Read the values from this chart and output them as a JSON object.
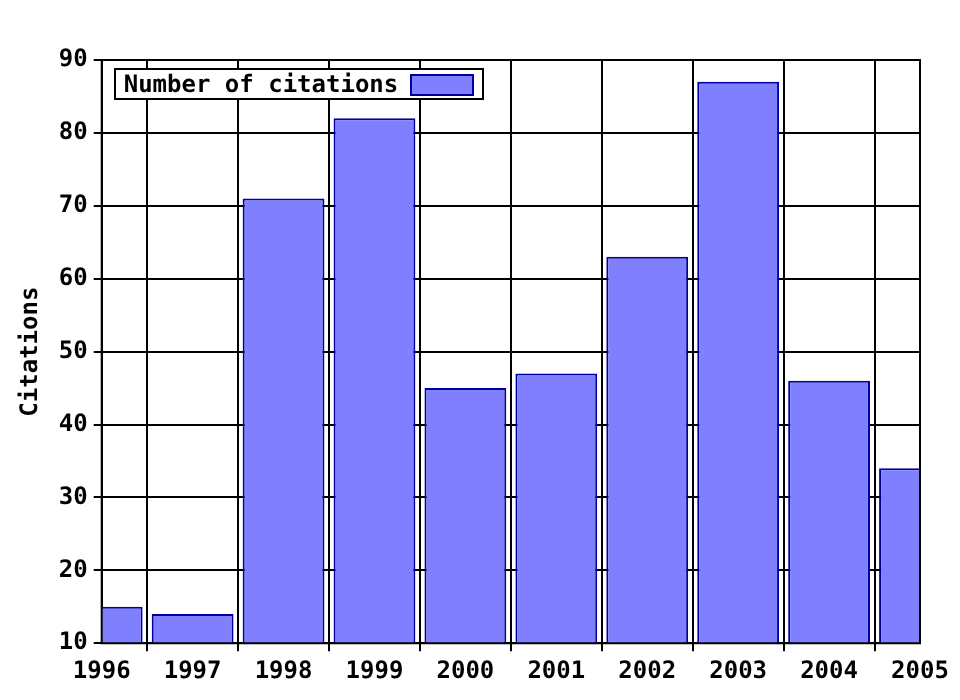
{
  "chart_data": {
    "type": "bar",
    "ylabel": "Citations",
    "x": [
      1996,
      1997,
      1998,
      1999,
      2000,
      2001,
      2002,
      2003,
      2004,
      2005
    ],
    "series": [
      {
        "name": "Number of citations",
        "color": "#8080ff",
        "values": [
          15,
          14,
          71,
          82,
          45,
          47,
          63,
          87,
          46,
          34
        ]
      }
    ],
    "xlim": [
      1996,
      2005
    ],
    "xticks": [
      1996,
      1997,
      1998,
      1999,
      2000,
      2001,
      2002,
      2003,
      2004,
      2005
    ],
    "ylim": [
      10,
      90
    ],
    "yticks": [
      10,
      20,
      30,
      40,
      50,
      60,
      70,
      80,
      90
    ],
    "grid": true,
    "legend": "top left"
  }
}
